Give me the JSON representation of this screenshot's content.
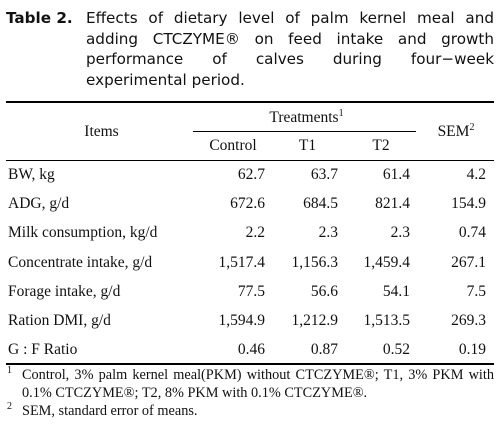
{
  "caption": {
    "label": "Table 2.",
    "text": "Effects of dietary level of palm kernel meal and adding CTCZYME® on feed intake and growth performance of calves during four−week experimental period."
  },
  "table": {
    "header": {
      "items": "Items",
      "treatments": "Treatments",
      "treatments_mark": "1",
      "sem": "SEM",
      "sem_mark": "2",
      "columns": [
        "Control",
        "T1",
        "T2"
      ]
    },
    "rows": [
      {
        "item": "BW, kg",
        "control": "62.7",
        "t1": "63.7",
        "t2": "61.4",
        "sem": "4.2"
      },
      {
        "item": "ADG, g/d",
        "control": "672.6",
        "t1": "684.5",
        "t2": "821.4",
        "sem": "154.9"
      },
      {
        "item": "Milk consumption, kg/d",
        "control": "2.2",
        "t1": "2.3",
        "t2": "2.3",
        "sem": "0.74"
      },
      {
        "item": "Concentrate intake, g/d",
        "control": "1,517.4",
        "t1": "1,156.3",
        "t2": "1,459.4",
        "sem": "267.1"
      },
      {
        "item": "Forage intake, g/d",
        "control": "77.5",
        "t1": "56.6",
        "t2": "54.1",
        "sem": "7.5"
      },
      {
        "item": "Ration DMI, g/d",
        "control": "1,594.9",
        "t1": "1,212.9",
        "t2": "1,513.5",
        "sem": "269.3"
      },
      {
        "item": "G : F Ratio",
        "control": "0.46",
        "t1": "0.87",
        "t2": "0.52",
        "sem": "0.19"
      }
    ]
  },
  "footnotes": [
    {
      "mark": "1",
      "text": "Control, 3% palm kernel meal(PKM) without CTCZYME®; T1, 3% PKM with 0.1% CTCZYME®; T2, 8% PKM with 0.1% CTCZYME®."
    },
    {
      "mark": "2",
      "text": "SEM, standard error of means."
    }
  ]
}
